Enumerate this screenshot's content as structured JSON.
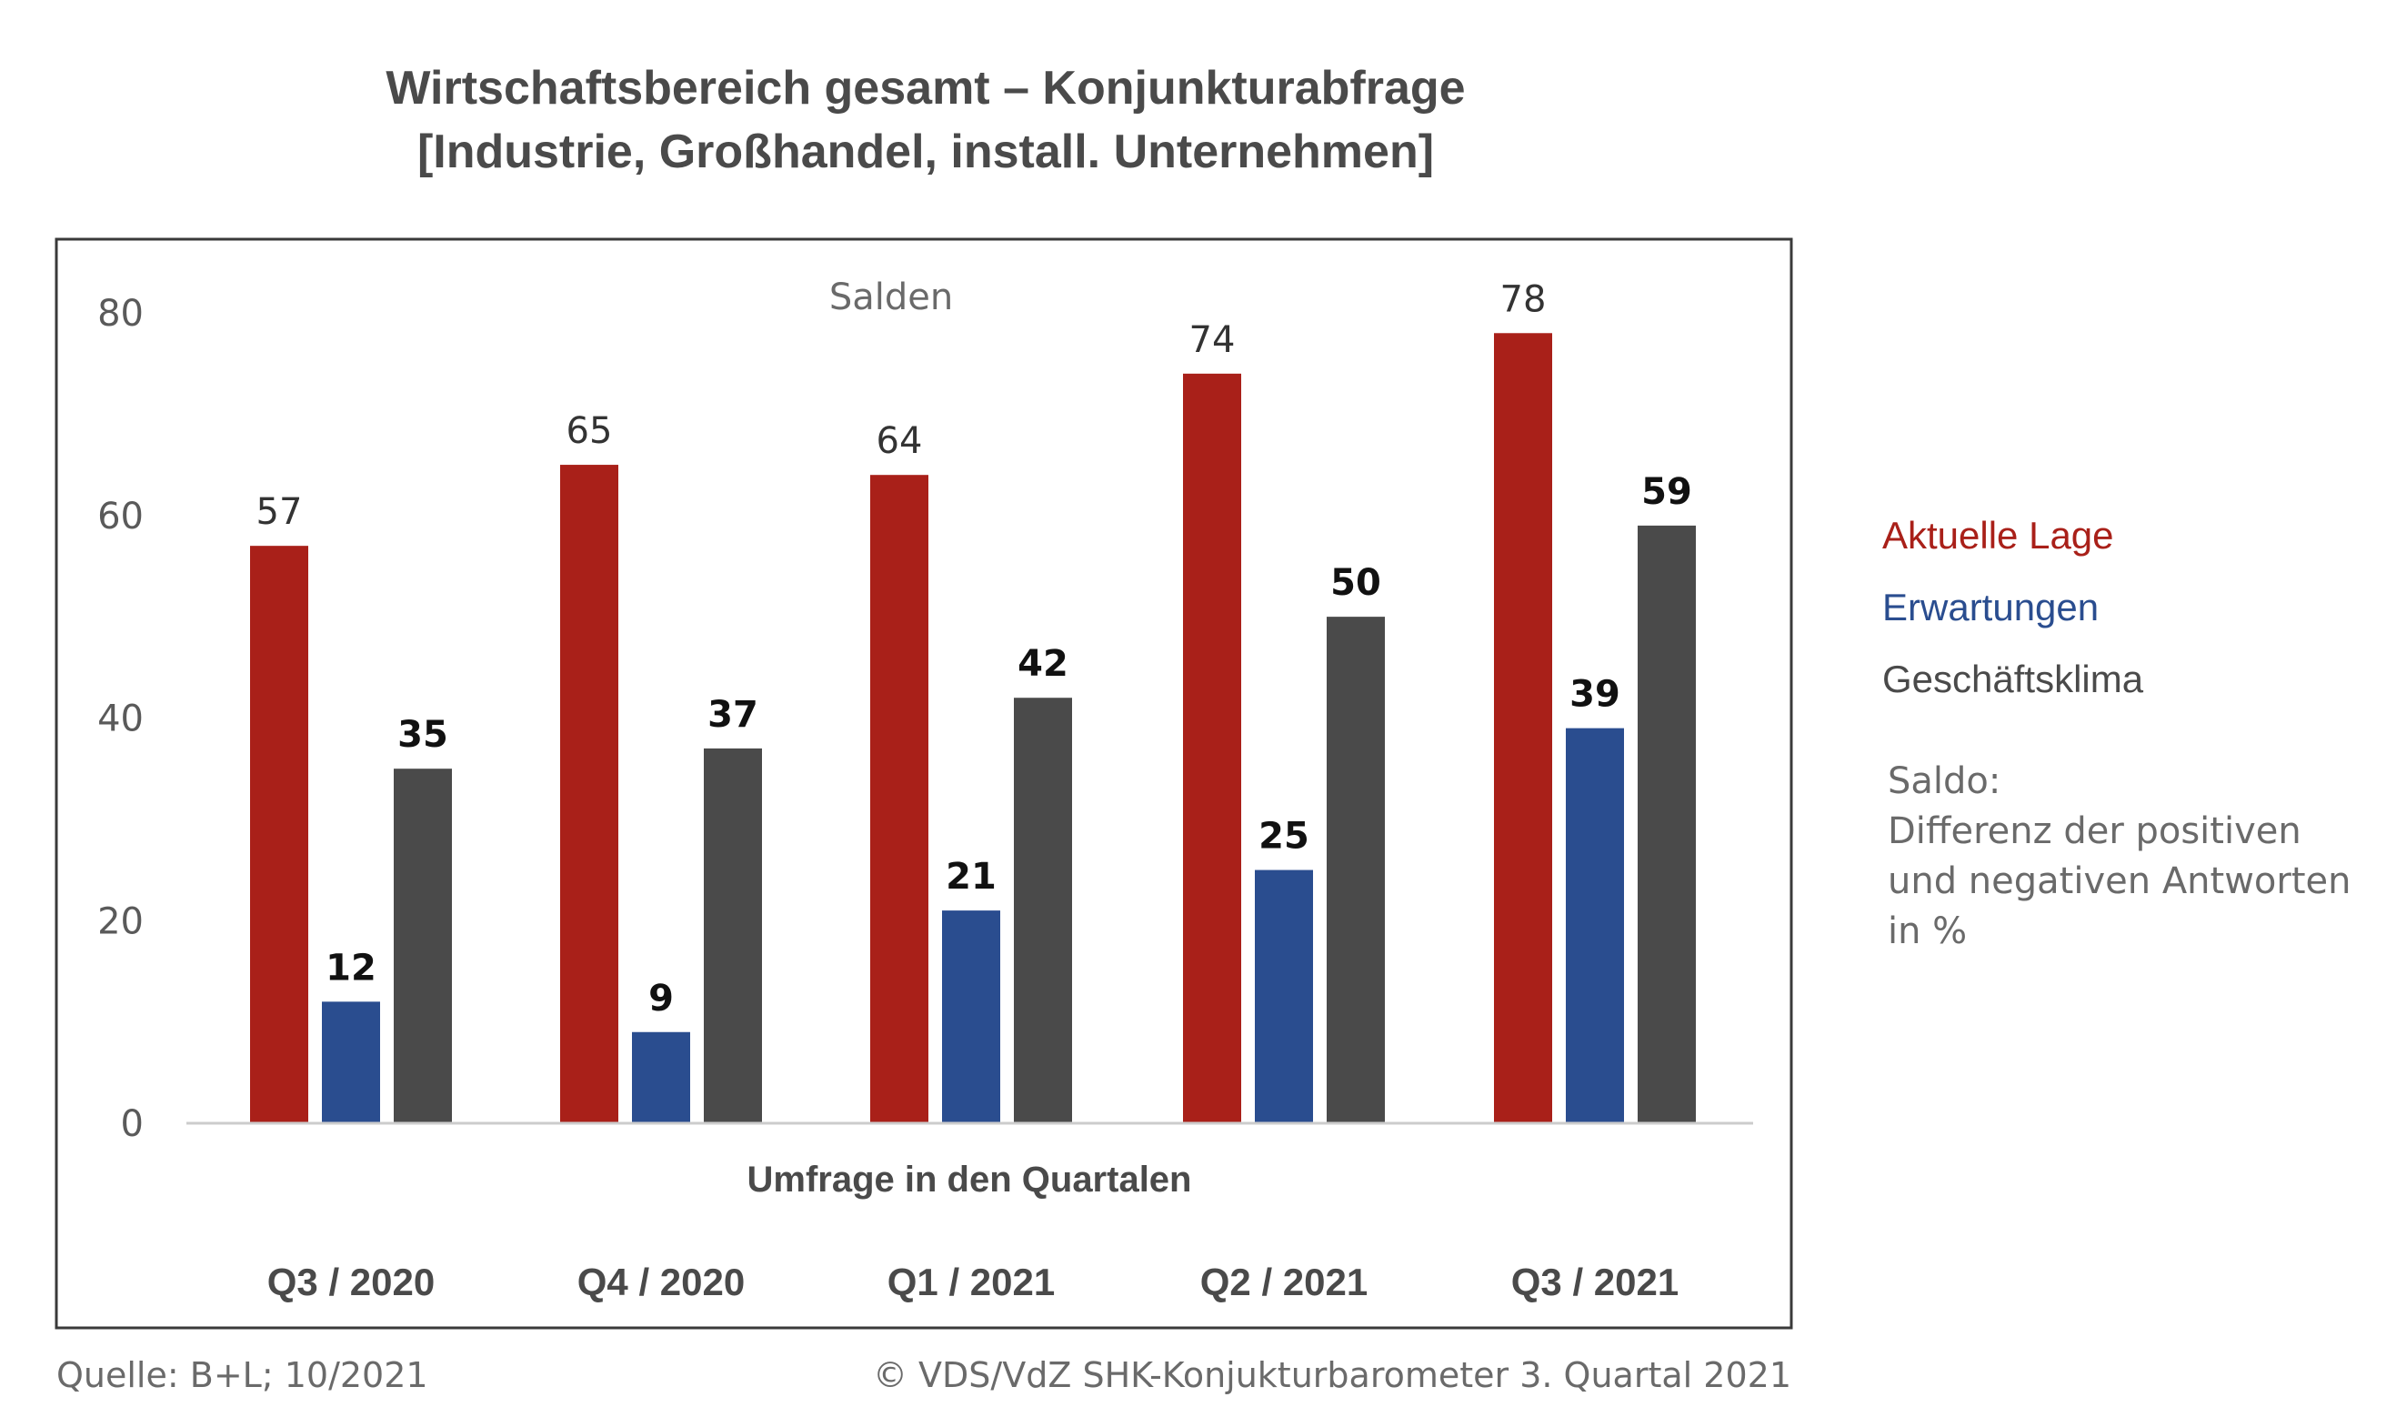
{
  "title_line1": "Wirtschaftsbereich gesamt – Konjunkturabfrage",
  "title_line2": "[Industrie, Großhandel, install. Unternehmen]",
  "note": {
    "line1": "Saldo:",
    "line2": "Differenz der positiven",
    "line3": "und negativen Antworten",
    "line4": "in %"
  },
  "footer": {
    "source": "Quelle: B+L; 10/2021",
    "copyright": "© VDS/VdZ SHK-Konjukturbarometer 3. Quartal 2021"
  },
  "chart_data": {
    "type": "bar",
    "annotation": "Salden",
    "xlabel": "Umfrage in den Quartalen",
    "ylabel": "",
    "ylim": [
      0,
      80
    ],
    "yticks": [
      0,
      20,
      40,
      60,
      80
    ],
    "grid": false,
    "legend_position": "right",
    "categories": [
      "Q3 / 2020",
      "Q4 / 2020",
      "Q1 / 2021",
      "Q2 / 2021",
      "Q3 / 2021"
    ],
    "series": [
      {
        "name": "Aktuelle Lage",
        "color": "#a92019",
        "values": [
          57,
          65,
          64,
          74,
          78
        ]
      },
      {
        "name": "Erwartungen",
        "color": "#2a4d8f",
        "values": [
          12,
          9,
          21,
          25,
          39
        ]
      },
      {
        "name": "Geschäftsklima",
        "color": "#4a4a4a",
        "values": [
          35,
          37,
          42,
          50,
          59
        ]
      }
    ]
  }
}
